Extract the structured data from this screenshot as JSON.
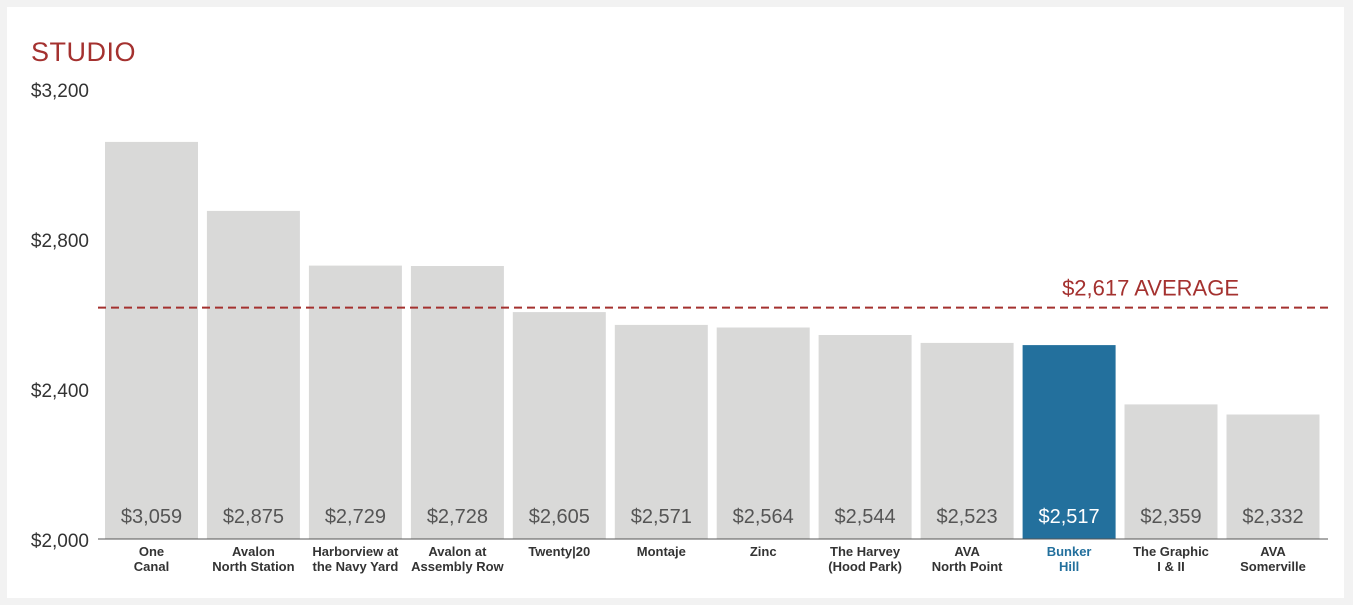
{
  "chart_data": {
    "type": "bar",
    "title": "STUDIO",
    "categories": [
      [
        "One",
        "Canal"
      ],
      [
        "Avalon",
        "North Station"
      ],
      [
        "Harborview at",
        "the Navy Yard"
      ],
      [
        "Avalon at",
        "Assembly Row"
      ],
      [
        "Twenty|20"
      ],
      [
        "Montaje"
      ],
      [
        "Zinc"
      ],
      [
        "The Harvey",
        "(Hood Park)"
      ],
      [
        "AVA",
        "North Point"
      ],
      [
        "Bunker",
        "Hill"
      ],
      [
        "The Graphic",
        "I & II"
      ],
      [
        "AVA",
        "Somerville"
      ]
    ],
    "values": [
      3059,
      2875,
      2729,
      2728,
      2605,
      2571,
      2564,
      2544,
      2523,
      2517,
      2359,
      2332
    ],
    "value_labels": [
      "$3,059",
      "$2,875",
      "$2,729",
      "$2,728",
      "$2,605",
      "$2,571",
      "$2,564",
      "$2,544",
      "$2,523",
      "$2,517",
      "$2,359",
      "$2,332"
    ],
    "highlight_index": 9,
    "ylim": [
      2000,
      3200
    ],
    "yticks": [
      2000,
      2400,
      2800,
      3200
    ],
    "ytick_labels": [
      "$2,000",
      "$2,400",
      "$2,800",
      "$3,200"
    ],
    "average": {
      "value": 2617,
      "label": "$2,617 AVERAGE"
    },
    "grid": false,
    "colors": {
      "bar": "#d9d9d8",
      "bar_highlight": "#23709d",
      "average": "#a4312f",
      "highlight_text": "#23709d",
      "bar_label": "#555555",
      "bar_label_highlight": "#ffffff",
      "axis_text": "#333333"
    }
  }
}
